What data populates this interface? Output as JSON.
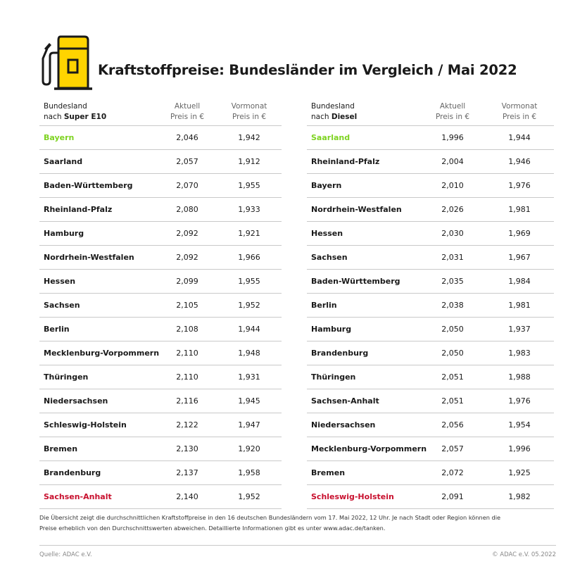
{
  "title": "Kraftstoffpreise: Bundesländer im Vergleich / Mai 2022",
  "colors": {
    "best": "#7ed321",
    "worst": "#c8102e",
    "pump_yellow": "#ffd400"
  },
  "icon": "fuel-pump-icon",
  "chart_data": [
    {
      "type": "table",
      "header": {
        "line1": "Bundesland",
        "line2_prefix": "nach ",
        "fuel": "Super E10",
        "col1_line1": "Aktuell",
        "col1_line2": "Preis in €",
        "col2_line1": "Vormonat",
        "col2_line2": "Preis in €"
      },
      "rows": [
        {
          "state": "Bayern",
          "current": "2,046",
          "previous": "1,942",
          "highlight": "best"
        },
        {
          "state": "Saarland",
          "current": "2,057",
          "previous": "1,912"
        },
        {
          "state": "Baden-Württemberg",
          "current": "2,070",
          "previous": "1,955"
        },
        {
          "state": "Rheinland-Pfalz",
          "current": "2,080",
          "previous": "1,933"
        },
        {
          "state": "Hamburg",
          "current": "2,092",
          "previous": "1,921"
        },
        {
          "state": "Nordrhein-Westfalen",
          "current": "2,092",
          "previous": "1,966"
        },
        {
          "state": "Hessen",
          "current": "2,099",
          "previous": "1,955"
        },
        {
          "state": "Sachsen",
          "current": "2,105",
          "previous": "1,952"
        },
        {
          "state": "Berlin",
          "current": "2,108",
          "previous": "1,944"
        },
        {
          "state": "Mecklenburg-Vorpommern",
          "current": "2,110",
          "previous": "1,948"
        },
        {
          "state": "Thüringen",
          "current": "2,110",
          "previous": "1,931"
        },
        {
          "state": "Niedersachsen",
          "current": "2,116",
          "previous": "1,945"
        },
        {
          "state": "Schleswig-Holstein",
          "current": "2,122",
          "previous": "1,947"
        },
        {
          "state": "Bremen",
          "current": "2,130",
          "previous": "1,920"
        },
        {
          "state": "Brandenburg",
          "current": "2,137",
          "previous": "1,958"
        },
        {
          "state": "Sachsen-Anhalt",
          "current": "2,140",
          "previous": "1,952",
          "highlight": "worst"
        }
      ]
    },
    {
      "type": "table",
      "header": {
        "line1": "Bundesland",
        "line2_prefix": "nach ",
        "fuel": "Diesel",
        "col1_line1": "Aktuell",
        "col1_line2": "Preis in €",
        "col2_line1": "Vormonat",
        "col2_line2": "Preis in €"
      },
      "rows": [
        {
          "state": "Saarland",
          "current": "1,996",
          "previous": "1,944",
          "highlight": "best"
        },
        {
          "state": "Rheinland-Pfalz",
          "current": "2,004",
          "previous": "1,946"
        },
        {
          "state": "Bayern",
          "current": "2,010",
          "previous": "1,976"
        },
        {
          "state": "Nordrhein-Westfalen",
          "current": "2,026",
          "previous": "1,981"
        },
        {
          "state": "Hessen",
          "current": "2,030",
          "previous": "1,969"
        },
        {
          "state": "Sachsen",
          "current": "2,031",
          "previous": "1,967"
        },
        {
          "state": "Baden-Württemberg",
          "current": "2,035",
          "previous": "1,984"
        },
        {
          "state": "Berlin",
          "current": "2,038",
          "previous": "1,981"
        },
        {
          "state": "Hamburg",
          "current": "2,050",
          "previous": "1,937"
        },
        {
          "state": "Brandenburg",
          "current": "2,050",
          "previous": "1,983"
        },
        {
          "state": "Thüringen",
          "current": "2,051",
          "previous": "1,988"
        },
        {
          "state": "Sachsen-Anhalt",
          "current": "2,051",
          "previous": "1,976"
        },
        {
          "state": "Niedersachsen",
          "current": "2,056",
          "previous": "1,954"
        },
        {
          "state": "Mecklenburg-Vorpommern",
          "current": "2,057",
          "previous": "1,996"
        },
        {
          "state": "Bremen",
          "current": "2,072",
          "previous": "1,925"
        },
        {
          "state": "Schleswig-Holstein",
          "current": "2,091",
          "previous": "1,982",
          "highlight": "worst"
        }
      ]
    }
  ],
  "footnote": {
    "line1": "Die Übersicht zeigt die durchschnittlichen Kraftstoffpreise in den 16 deutschen Bundesländern vom 17. Mai 2022, 12 Uhr. Je nach Stadt oder Region können die",
    "line2": "Preise erheblich von den Durchschnittswerten abweichen. Detaillierte Informationen gibt es unter www.adac.de/tanken."
  },
  "source": "Quelle: ADAC e.V.",
  "copyright": "© ADAC e.V. 05.2022"
}
